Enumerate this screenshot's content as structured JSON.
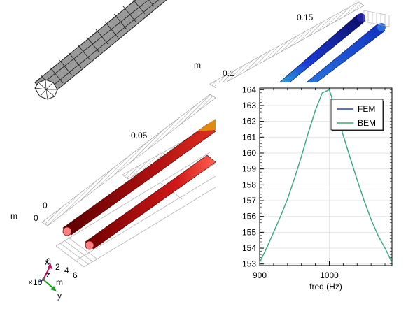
{
  "scene": {
    "labels": {
      "top_m": "m",
      "grid_015": "0.15",
      "grid_01": "0.1",
      "grid_005": "0.05",
      "grid_0": "0",
      "axis_m_left": "m",
      "axis_0_left": "0",
      "ruler_tick_0": "0",
      "ruler_tick_2": "2",
      "ruler_tick_4": "4",
      "ruler_tick_6": "6",
      "scale_factor": "×10",
      "triad_x": "x",
      "triad_z": "z",
      "triad_y": "y",
      "triad_m": "m"
    },
    "colors": {
      "mesh_fill": "#9a9a9a",
      "mesh_edge": "#1a1a1a",
      "pipe_red_dark": "#5a0000",
      "pipe_red_mid": "#c01010",
      "pipe_red_end": "#ff8080",
      "pipe_orange": "#e08a10",
      "pipe_blue_dark": "#0a0a60",
      "pipe_blue_mid": "#1a3cd8",
      "pipe_cyan": "#30c0d8",
      "triad_x": "#c01060",
      "triad_y": "#20a020",
      "triad_z": "#2040c0"
    }
  },
  "chart_data": {
    "type": "line",
    "title": "",
    "xlabel": "freq (Hz)",
    "ylabel": "",
    "xlim": [
      900,
      1090
    ],
    "ylim": [
      152.9,
      164.1
    ],
    "xticks": [
      900,
      1000
    ],
    "yticks": [
      153,
      154,
      155,
      156,
      157,
      158,
      159,
      160,
      161,
      162,
      163,
      164
    ],
    "legend_position": "top-right",
    "grid": true,
    "series": [
      {
        "name": "FEM",
        "color": "#2140c8",
        "x": [
          900,
          910,
          920,
          930,
          940,
          950,
          960,
          970,
          980,
          990,
          1000,
          1010,
          1020,
          1030,
          1040,
          1050,
          1060,
          1070,
          1080,
          1090
        ],
        "y": [
          153.1,
          154.0,
          155.0,
          156.0,
          157.1,
          158.4,
          159.8,
          161.3,
          162.7,
          163.8,
          164.0,
          162.6,
          161.1,
          159.7,
          158.3,
          157.0,
          155.8,
          154.8,
          154.0,
          153.1
        ]
      },
      {
        "name": "BEM",
        "color": "#2fb36a",
        "x": [
          900,
          910,
          920,
          930,
          940,
          950,
          960,
          970,
          980,
          990,
          1000,
          1010,
          1020,
          1030,
          1040,
          1050,
          1060,
          1070,
          1080,
          1090
        ],
        "y": [
          153.1,
          154.0,
          155.0,
          156.0,
          157.1,
          158.4,
          159.8,
          161.3,
          162.7,
          163.8,
          164.0,
          162.6,
          161.1,
          159.7,
          158.3,
          157.0,
          155.8,
          154.8,
          154.0,
          153.1
        ]
      }
    ]
  }
}
